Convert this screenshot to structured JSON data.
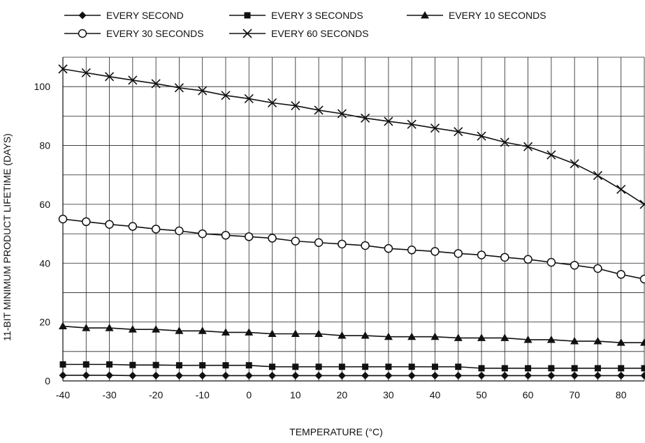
{
  "chart_data": {
    "type": "line",
    "title": "",
    "xlabel": "TEMPERATURE (°C)",
    "ylabel": "11-BIT MINIMUM PRODUCT LIFETIME (DAYS)",
    "xlim": [
      -40,
      85
    ],
    "ylim": [
      0,
      110
    ],
    "xticks": [
      -40,
      -30,
      -20,
      -10,
      0,
      10,
      20,
      30,
      40,
      50,
      60,
      70,
      80
    ],
    "yticks": [
      0,
      20,
      40,
      60,
      80,
      100
    ],
    "grid": true,
    "legend_position": "top",
    "x": [
      -40,
      -35,
      -30,
      -25,
      -20,
      -15,
      -10,
      -5,
      0,
      5,
      10,
      15,
      20,
      25,
      30,
      35,
      40,
      45,
      50,
      55,
      60,
      65,
      70,
      75,
      80,
      85
    ],
    "series": [
      {
        "name": "EVERY SECOND",
        "marker": "diamond",
        "values": [
          1.9,
          1.9,
          1.9,
          1.8,
          1.8,
          1.8,
          1.8,
          1.8,
          1.8,
          1.8,
          1.8,
          1.8,
          1.8,
          1.8,
          1.8,
          1.8,
          1.8,
          1.8,
          1.8,
          1.8,
          1.8,
          1.8,
          1.8,
          1.8,
          1.8,
          1.8
        ]
      },
      {
        "name": "EVERY 3 SECONDS",
        "marker": "square",
        "values": [
          5.6,
          5.6,
          5.6,
          5.4,
          5.4,
          5.3,
          5.3,
          5.3,
          5.3,
          4.8,
          4.8,
          4.8,
          4.8,
          4.8,
          4.8,
          4.8,
          4.8,
          4.8,
          4.3,
          4.3,
          4.3,
          4.3,
          4.3,
          4.3,
          4.3,
          4.3
        ]
      },
      {
        "name": "EVERY 10 SECONDS",
        "marker": "triangle",
        "values": [
          18.6,
          18.0,
          18.0,
          17.5,
          17.5,
          17.0,
          17.0,
          16.5,
          16.5,
          16.0,
          16.0,
          16.0,
          15.4,
          15.4,
          15.0,
          15.0,
          15.0,
          14.6,
          14.6,
          14.6,
          14.0,
          14.0,
          13.5,
          13.5,
          13.0,
          13.0
        ]
      },
      {
        "name": "EVERY 30 SECONDS",
        "marker": "circle",
        "values": [
          55.0,
          54.1,
          53.2,
          52.5,
          51.6,
          51.0,
          50.0,
          49.5,
          49.0,
          48.5,
          47.5,
          47.0,
          46.5,
          46.0,
          45.0,
          44.5,
          44.0,
          43.3,
          42.8,
          42.0,
          41.3,
          40.3,
          39.3,
          38.2,
          36.2,
          34.6
        ]
      },
      {
        "name": "EVERY 60 SECONDS",
        "marker": "x",
        "values": [
          106.0,
          104.7,
          103.4,
          102.2,
          101.0,
          99.6,
          98.6,
          97.0,
          95.9,
          94.5,
          93.5,
          92.0,
          90.8,
          89.3,
          88.2,
          87.2,
          85.9,
          84.7,
          83.2,
          81.1,
          79.6,
          76.8,
          73.8,
          69.8,
          65.1,
          60.0
        ]
      }
    ]
  }
}
